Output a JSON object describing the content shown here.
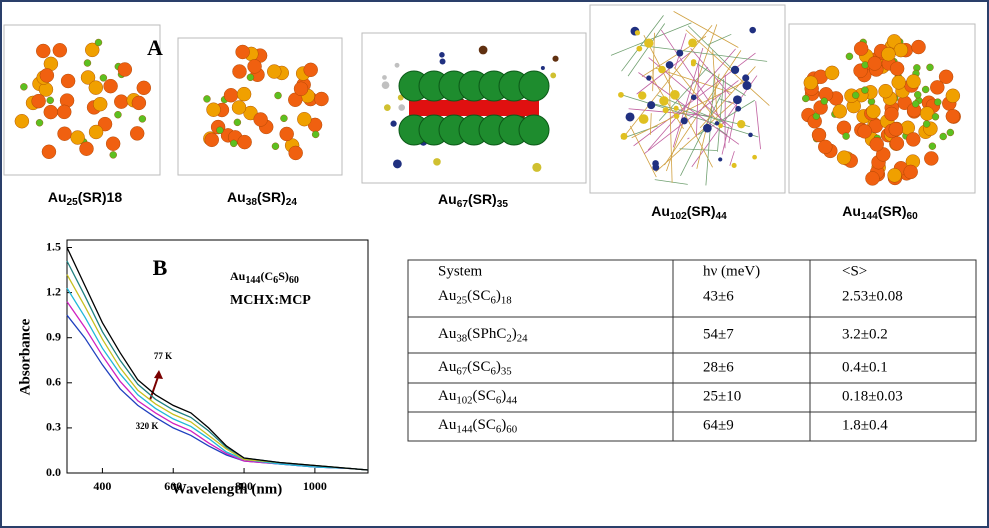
{
  "panel_a": {
    "label": "A",
    "clusters": [
      {
        "label": [
          "Au",
          "25",
          "(SR)18"
        ]
      },
      {
        "label": [
          "Au",
          "38",
          "(SR)",
          "24"
        ]
      },
      {
        "label": [
          "Au",
          "67",
          "(SR)",
          "35"
        ]
      },
      {
        "label": [
          "Au",
          "102",
          "(SR)",
          "44"
        ]
      },
      {
        "label": [
          "Au",
          "144",
          "(SR)",
          "60"
        ]
      }
    ]
  },
  "chart_data": {
    "type": "line",
    "panel_label": "B",
    "title": [
      "Au",
      "144",
      "(C",
      "6",
      "S)",
      "60"
    ],
    "subtitle": "MCHX:MCP",
    "x_label": "Wavelength (nm)",
    "y_label": "Absorbance",
    "x": [
      300,
      350,
      400,
      450,
      500,
      550,
      600,
      650,
      700,
      750,
      800,
      900,
      1000,
      1100,
      1150
    ],
    "series": [
      {
        "color": "#1f3fbf",
        "values": [
          1.05,
          0.9,
          0.72,
          0.56,
          0.45,
          0.37,
          0.3,
          0.25,
          0.18,
          0.12,
          0.08,
          0.06,
          0.04,
          0.03,
          0.02
        ]
      },
      {
        "color": "#d020c0",
        "values": [
          1.14,
          0.97,
          0.78,
          0.61,
          0.48,
          0.4,
          0.33,
          0.28,
          0.2,
          0.13,
          0.08,
          0.06,
          0.04,
          0.03,
          0.02
        ]
      },
      {
        "color": "#20b8d8",
        "values": [
          1.23,
          1.04,
          0.83,
          0.66,
          0.52,
          0.43,
          0.36,
          0.31,
          0.23,
          0.14,
          0.09,
          0.06,
          0.04,
          0.03,
          0.02
        ]
      },
      {
        "color": "#c8c020",
        "values": [
          1.32,
          1.11,
          0.89,
          0.7,
          0.55,
          0.46,
          0.39,
          0.34,
          0.25,
          0.16,
          0.09,
          0.07,
          0.05,
          0.03,
          0.02
        ]
      },
      {
        "color": "#208080",
        "values": [
          1.41,
          1.18,
          0.94,
          0.75,
          0.59,
          0.49,
          0.42,
          0.37,
          0.28,
          0.17,
          0.1,
          0.07,
          0.05,
          0.03,
          0.02
        ]
      },
      {
        "color": "#000000",
        "values": [
          1.5,
          1.25,
          1.0,
          0.8,
          0.62,
          0.52,
          0.45,
          0.4,
          0.3,
          0.18,
          0.1,
          0.07,
          0.05,
          0.03,
          0.02
        ]
      }
    ],
    "xlim": [
      300,
      1150
    ],
    "ylim": [
      0,
      1.55
    ],
    "xticks": [
      400,
      600,
      800,
      1000
    ],
    "yticks": [
      {
        "value": 0,
        "label": "0.0"
      },
      0.3,
      0.6,
      0.9,
      1.2,
      1.5
    ],
    "annotations": [
      "77 K",
      "320 K"
    ]
  },
  "table": {
    "header": [
      "System",
      "hν (meV)",
      "<S>"
    ],
    "rows": [
      [
        [
          "Au",
          "25",
          "(SC",
          "6",
          ")",
          "18"
        ],
        "43±6",
        "2.53±0.08"
      ],
      [
        [
          "Au",
          "38",
          "(SPhC",
          "2",
          ")",
          "24"
        ],
        "54±7",
        "3.2±0.2"
      ],
      [
        [
          "Au",
          "67",
          "(SC",
          "6",
          ")",
          "35"
        ],
        "28±6",
        "0.4±0.1"
      ],
      [
        [
          "Au",
          "102",
          "(SC",
          "6",
          ")",
          "44"
        ],
        "25±10",
        "0.18±0.03"
      ],
      [
        [
          "Au",
          "144",
          "(SC",
          "6",
          ")",
          "60"
        ],
        "64±9",
        "1.8±0.4"
      ]
    ]
  }
}
